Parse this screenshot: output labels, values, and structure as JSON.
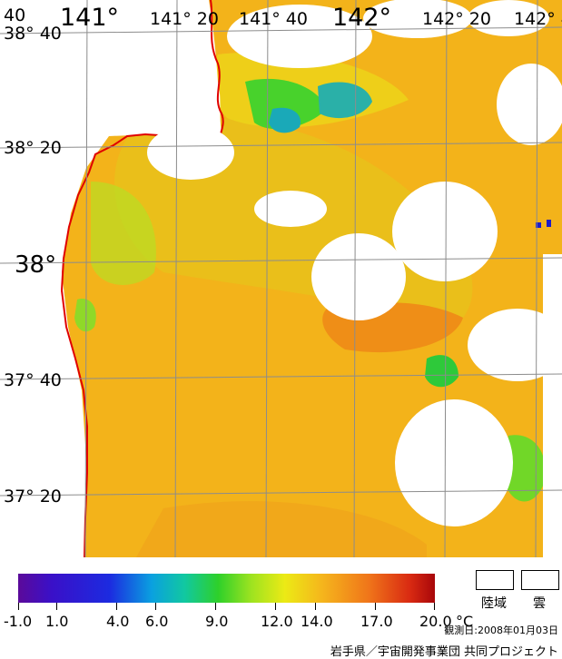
{
  "map": {
    "lon_labels": [
      "141°",
      "141° 20",
      "141° 40",
      "142°",
      "142° 20",
      "142° 4"
    ],
    "lat_labels": [
      "38° 40",
      "38° 20",
      "38°",
      "37° 40",
      "37° 20"
    ],
    "corner_label": "40",
    "colors": {
      "coast": "#e00000",
      "grid": "#8c8c8c",
      "land_cloud": "#ffffff"
    }
  },
  "legend": {
    "ticks": [
      "-1.0",
      "1.0",
      "4.0",
      "6.0",
      "9.0",
      "12.0",
      "14.0",
      "17.0",
      "20.0"
    ],
    "unit": "°C",
    "land_label": "陸域",
    "cloud_label": "雲",
    "observation_date": "観測日:2008年01月03日",
    "credit": "岩手県／宇宙開発事業団 共同プロジェクト"
  }
}
